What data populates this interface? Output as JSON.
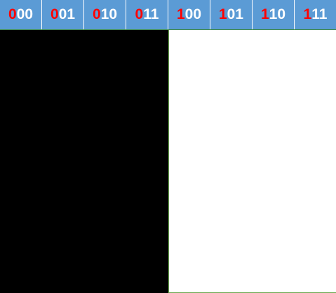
{
  "header": {
    "codes": [
      {
        "msb": "0",
        "rest": "00"
      },
      {
        "msb": "0",
        "rest": "01"
      },
      {
        "msb": "0",
        "rest": "10"
      },
      {
        "msb": "0",
        "rest": "11"
      },
      {
        "msb": "1",
        "rest": "00"
      },
      {
        "msb": "1",
        "rest": "01"
      },
      {
        "msb": "1",
        "rest": "10"
      },
      {
        "msb": "1",
        "rest": "11"
      }
    ]
  },
  "colors": {
    "header_bg": "#5b9bd5",
    "msb_digit": "#ff0000",
    "other_digits": "#ffffff",
    "left_panel": "#000000",
    "right_panel": "#ffffff"
  }
}
